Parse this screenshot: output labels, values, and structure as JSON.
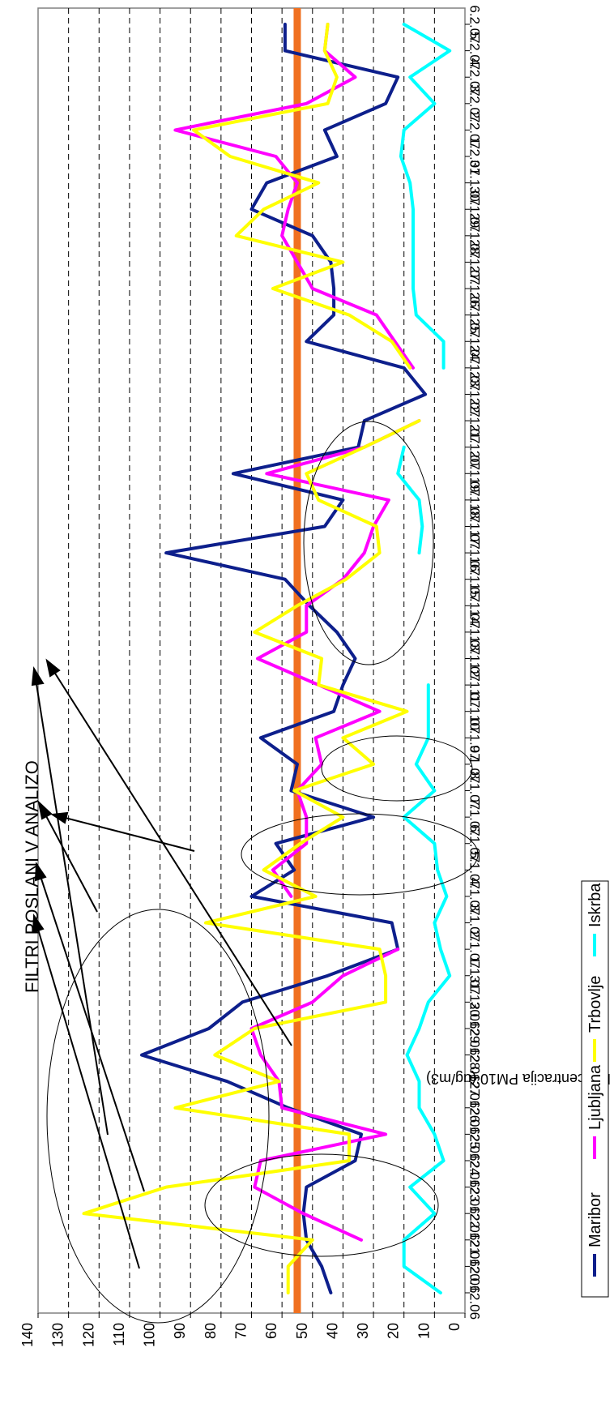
{
  "chart_data": {
    "type": "line",
    "title": "FILTRI POSLANI V ANALIZO",
    "ylabel": "Koncentracija PM10 (ug/m3)",
    "xlabel": "",
    "ylim": [
      0,
      140
    ],
    "y_ticks": [
      0,
      10,
      20,
      30,
      40,
      50,
      60,
      70,
      80,
      90,
      100,
      110,
      120,
      130,
      140
    ],
    "grid": true,
    "legend_position": "bottom",
    "orientation": "rotated-90-clockwise",
    "categories": [
      "20.12.06",
      "21.12.06",
      "22.12.06",
      "23.12.06",
      "24.12.06",
      "25.12.06",
      "26.12.06",
      "27.12.06",
      "28.12.06",
      "29.12.06",
      "30.12.06",
      "31.12.06",
      "1.1.07",
      "2.1.07",
      "3.1.07",
      "4.1.07",
      "5.1.07",
      "6.1.07",
      "7.1.07",
      "8.1.07",
      "9.1.07",
      "10.1.07",
      "11.1.07",
      "12.1.07",
      "13.1.07",
      "14.1.07",
      "15.1.07",
      "16.1.07",
      "17.1.07",
      "18.1.07",
      "19.1.07",
      "20.1.07",
      "21.1.07",
      "22.1.07",
      "23.1.07",
      "24.1.07",
      "25.1.07",
      "26.1.07",
      "27.1.07",
      "28.1.07",
      "29.1.07",
      "30.1.07",
      "31.1.07",
      "1.2.07",
      "2.2.07",
      "3.2.07",
      "4.2.07",
      "5.2.07",
      "6.2.07"
    ],
    "limit_value": 55,
    "limit_color": "#f07020",
    "series": [
      {
        "name": "Maribor",
        "color": "#0d1f8c",
        "values": [
          44,
          47,
          52,
          53,
          52,
          36,
          34,
          58,
          78,
          106,
          84,
          73,
          45,
          22,
          24,
          70,
          56,
          62,
          30,
          57,
          55,
          67,
          43,
          40,
          36,
          42,
          51,
          59,
          98,
          46,
          40,
          76,
          35,
          33,
          13,
          20,
          52,
          43,
          43,
          44,
          50,
          70,
          65,
          42,
          46,
          26,
          22,
          59,
          59
        ]
      },
      {
        "name": "Ljubljana",
        "color": "#ff00ff",
        "values": [
          null,
          null,
          34,
          53,
          69,
          67,
          26,
          60,
          61,
          67,
          70,
          50,
          40,
          22,
          null,
          57,
          63,
          52,
          52,
          55,
          47,
          49,
          28,
          48,
          68,
          52,
          52,
          40,
          33,
          30,
          25,
          65,
          33,
          15,
          null,
          17,
          23,
          29,
          50,
          55,
          60,
          58,
          55,
          62,
          95,
          52,
          36,
          46,
          45
        ]
      },
      {
        "name": "Trbovlje",
        "color": "#ffff00",
        "values": [
          58,
          58,
          50,
          125,
          98,
          38,
          38,
          95,
          61,
          82,
          69,
          26,
          26,
          28,
          85,
          49,
          66,
          54,
          40,
          56,
          30,
          40,
          19,
          48,
          47,
          69,
          55,
          39,
          28,
          29,
          48,
          52,
          33,
          15,
          null,
          18,
          24,
          38,
          63,
          40,
          75,
          66,
          48,
          77,
          89,
          45,
          42,
          46,
          45
        ]
      },
      {
        "name": "Iskrba",
        "color": "#00ffff",
        "values": [
          8,
          20,
          20,
          10,
          18,
          7,
          10,
          15,
          15,
          19,
          15,
          12,
          5,
          8,
          10,
          6,
          9,
          10,
          20,
          10,
          16,
          12,
          12,
          12,
          null,
          null,
          null,
          null,
          15,
          14,
          15,
          22,
          20,
          null,
          null,
          7,
          7,
          16,
          17,
          17,
          17,
          17,
          18,
          21,
          20,
          10,
          18,
          5,
          20
        ]
      }
    ]
  }
}
